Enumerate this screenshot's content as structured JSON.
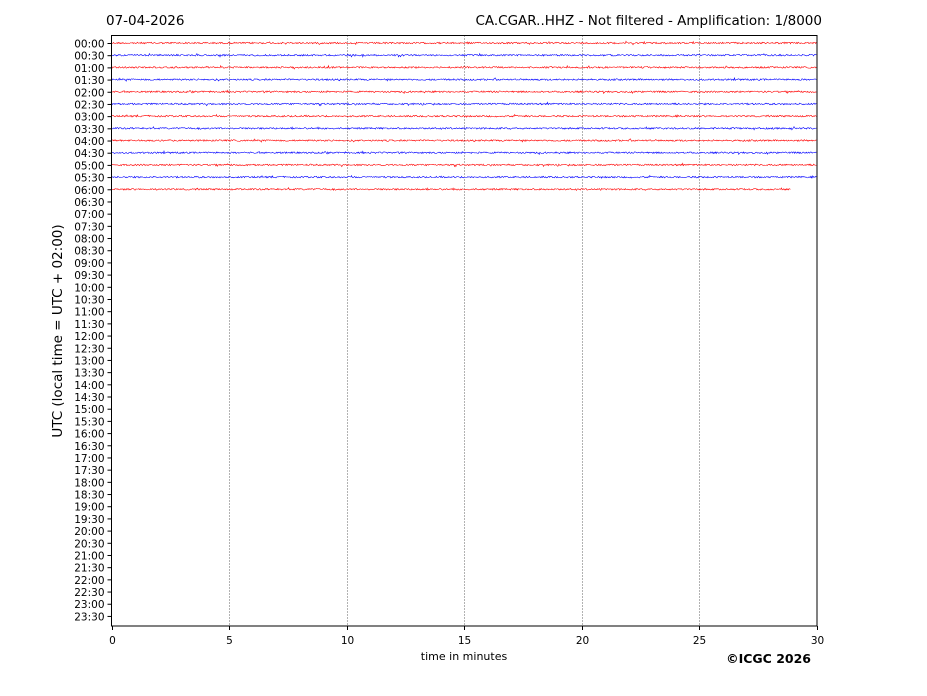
{
  "chart_data": {
    "type": "line",
    "date": "07-04-2026",
    "title": "CA.CGAR..HHZ - Not filtered - Amplification: 1/8000",
    "xlabel": "time in minutes",
    "ylabel": "UTC (local time = UTC + 02:00)",
    "xlim": [
      0,
      30
    ],
    "x_ticks": [
      "0",
      "5",
      "10",
      "15",
      "20",
      "25",
      "30"
    ],
    "x_tick_values": [
      0,
      5,
      10,
      15,
      20,
      25,
      30
    ],
    "grid": "vertical dotted lines at x ticks",
    "y_tick_labels": [
      "00:00",
      "00:30",
      "01:00",
      "01:30",
      "02:00",
      "02:30",
      "03:00",
      "03:30",
      "04:00",
      "04:30",
      "05:00",
      "05:30",
      "06:00",
      "06:30",
      "07:00",
      "07:30",
      "08:00",
      "08:30",
      "09:00",
      "09:30",
      "10:00",
      "10:30",
      "11:00",
      "11:30",
      "12:00",
      "12:30",
      "13:00",
      "13:30",
      "14:00",
      "14:30",
      "15:00",
      "15:30",
      "16:00",
      "16:30",
      "17:00",
      "17:30",
      "18:00",
      "18:30",
      "19:00",
      "19:30",
      "20:00",
      "20:30",
      "21:00",
      "21:30",
      "22:00",
      "22:30",
      "23:00",
      "23:30"
    ],
    "traces": [
      {
        "row": "00:00",
        "color": "#ff0000",
        "end_minute": 30
      },
      {
        "row": "00:30",
        "color": "#0000ff",
        "end_minute": 30
      },
      {
        "row": "01:00",
        "color": "#ff0000",
        "end_minute": 30
      },
      {
        "row": "01:30",
        "color": "#0000ff",
        "end_minute": 30
      },
      {
        "row": "02:00",
        "color": "#ff0000",
        "end_minute": 30
      },
      {
        "row": "02:30",
        "color": "#0000ff",
        "end_minute": 30
      },
      {
        "row": "03:00",
        "color": "#ff0000",
        "end_minute": 30
      },
      {
        "row": "03:30",
        "color": "#0000ff",
        "end_minute": 30
      },
      {
        "row": "04:00",
        "color": "#ff0000",
        "end_minute": 30
      },
      {
        "row": "04:30",
        "color": "#0000ff",
        "end_minute": 30
      },
      {
        "row": "05:00",
        "color": "#ff0000",
        "end_minute": 30
      },
      {
        "row": "05:30",
        "color": "#0000ff",
        "end_minute": 30
      },
      {
        "row": "06:00",
        "color": "#ff0000",
        "end_minute": 28.9
      }
    ]
  },
  "copyright": "©ICGC 2026"
}
